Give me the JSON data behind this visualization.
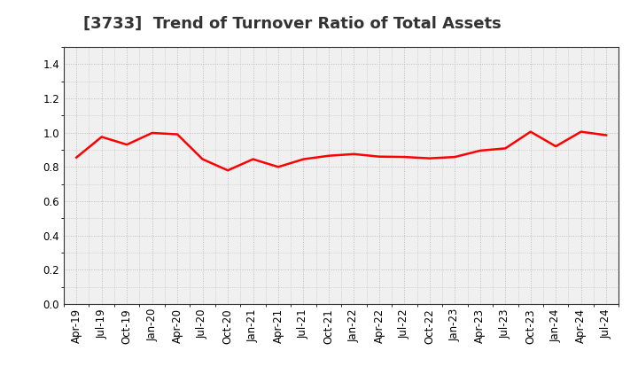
{
  "title": "[3733]  Trend of Turnover Ratio of Total Assets",
  "line_color": "#FF0000",
  "background_color": "#FFFFFF",
  "plot_bg_color": "#F0F0F0",
  "grid_color": "#BBBBBB",
  "ylim": [
    0.0,
    1.5
  ],
  "yticks": [
    0.0,
    0.2,
    0.4,
    0.6,
    0.8,
    1.0,
    1.2,
    1.4
  ],
  "x_labels": [
    "Apr-19",
    "Jul-19",
    "Oct-19",
    "Jan-20",
    "Apr-20",
    "Jul-20",
    "Oct-20",
    "Jan-21",
    "Apr-21",
    "Jul-21",
    "Oct-21",
    "Jan-22",
    "Apr-22",
    "Jul-22",
    "Oct-22",
    "Jan-23",
    "Apr-23",
    "Jul-23",
    "Oct-23",
    "Jan-24",
    "Apr-24",
    "Jul-24"
  ],
  "values": [
    0.855,
    0.975,
    0.93,
    0.998,
    0.99,
    0.845,
    0.78,
    0.845,
    0.8,
    0.845,
    0.865,
    0.875,
    0.86,
    0.858,
    0.85,
    0.858,
    0.895,
    0.908,
    1.005,
    0.92,
    1.005,
    0.985
  ],
  "title_fontsize": 13,
  "tick_fontsize": 8.5,
  "line_width": 1.8,
  "title_color": "#333333"
}
